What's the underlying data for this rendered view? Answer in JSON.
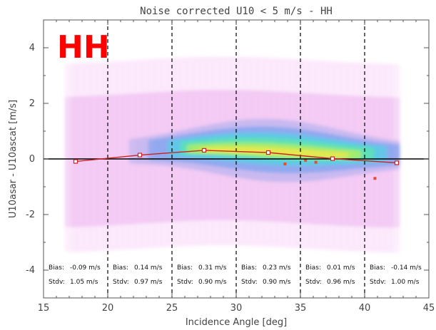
{
  "chart_data": {
    "type": "scatter",
    "title": "Noise corrected U10 < 5 m/s - HH",
    "badge": "HH",
    "xlabel": "Incidence Angle [deg]",
    "ylabel": "U10asar - U10ascat [m/s]",
    "xlim": [
      15,
      45
    ],
    "ylim": [
      -5,
      5
    ],
    "x_ticks": [
      "15",
      "20",
      "25",
      "30",
      "35",
      "40",
      "45"
    ],
    "y_ticks": [
      "-4",
      "-2",
      "0",
      "2",
      "4"
    ],
    "bin_edges": [
      20,
      25,
      30,
      35,
      40
    ],
    "colors": {
      "mean_line": "#cc2222",
      "zero_line": "#000000",
      "badge": "#ff0000"
    },
    "mean_curve": {
      "x": [
        17.5,
        22.5,
        27.5,
        32.5,
        37.5,
        42.5
      ],
      "y": [
        -0.09,
        0.14,
        0.31,
        0.23,
        0.01,
        -0.14
      ]
    },
    "bins": [
      {
        "bias_label": "Bias:",
        "bias": "-0.09 m/s",
        "stdv_label": "Stdv:",
        "stdv": "1.05 m/s"
      },
      {
        "bias_label": "Bias:",
        "bias": "0.14 m/s",
        "stdv_label": "Stdv:",
        "stdv": "0.97 m/s"
      },
      {
        "bias_label": "Bias:",
        "bias": "0.31 m/s",
        "stdv_label": "Stdv:",
        "stdv": "0.90 m/s"
      },
      {
        "bias_label": "Bias:",
        "bias": "0.23 m/s",
        "stdv_label": "Stdv:",
        "stdv": "0.90 m/s"
      },
      {
        "bias_label": "Bias:",
        "bias": "0.01 m/s",
        "stdv_label": "Stdv:",
        "stdv": "0.96 m/s"
      },
      {
        "bias_label": "Bias:",
        "bias": "-0.14 m/s",
        "stdv_label": "Stdv:",
        "stdv": "1.00 m/s"
      }
    ]
  }
}
